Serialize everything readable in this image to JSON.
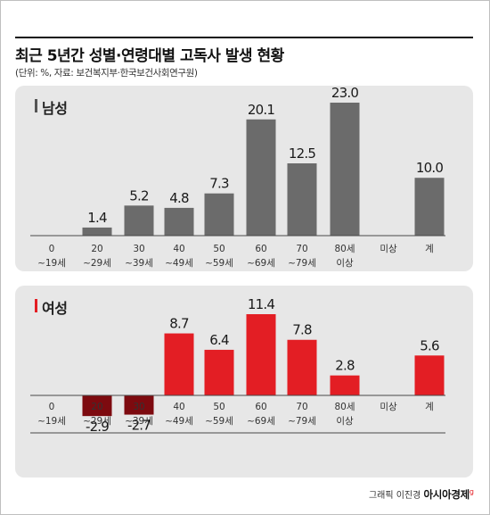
{
  "title": "최근 5년간 성별·연령대별 고독사 발생 현황",
  "subtitle": "(단위: %, 자료: 보건복지부·한국보건사회연구원)",
  "credit": {
    "text": "그래픽 이진경",
    "brand": "아시아경제",
    "mark": "g"
  },
  "colors": {
    "male": "#6b6b6b",
    "female": "#e31e24",
    "female_negative": "#7d0a0f",
    "panel_bg": "#e7e7e7",
    "baseline": "#4a4a4a"
  },
  "chart_data": [
    {
      "type": "bar",
      "title": "남성",
      "categories": [
        [
          "0",
          "~19세"
        ],
        [
          "20",
          "~29세"
        ],
        [
          "30",
          "~39세"
        ],
        [
          "40",
          "~49세"
        ],
        [
          "50",
          "~59세"
        ],
        [
          "60",
          "~69세"
        ],
        [
          "70",
          "~79세"
        ],
        [
          "80세",
          "이상"
        ],
        [
          "미상"
        ],
        [
          "계"
        ]
      ],
      "values": [
        0,
        1.4,
        5.2,
        4.8,
        7.3,
        20.1,
        12.5,
        23.0,
        0,
        10.0
      ],
      "labels": [
        "",
        "1.4",
        "5.2",
        "4.8",
        "7.3",
        "20.1",
        "12.5",
        "23.0",
        "",
        "10.0"
      ],
      "ylim": [
        0,
        23.0
      ]
    },
    {
      "type": "bar",
      "title": "여성",
      "categories": [
        [
          "0",
          "~19세"
        ],
        [
          "20",
          "~29세"
        ],
        [
          "30",
          "~39세"
        ],
        [
          "40",
          "~49세"
        ],
        [
          "50",
          "~59세"
        ],
        [
          "60",
          "~69세"
        ],
        [
          "70",
          "~79세"
        ],
        [
          "80세",
          "이상"
        ],
        [
          "미상"
        ],
        [
          "계"
        ]
      ],
      "values": [
        0,
        -2.9,
        -2.7,
        8.7,
        6.4,
        11.4,
        7.8,
        2.8,
        0,
        5.6
      ],
      "labels": [
        "",
        "-2.9",
        "-2.7",
        "8.7",
        "6.4",
        "11.4",
        "7.8",
        "2.8",
        "",
        "5.6"
      ],
      "ylim": [
        -2.9,
        11.4
      ]
    }
  ]
}
